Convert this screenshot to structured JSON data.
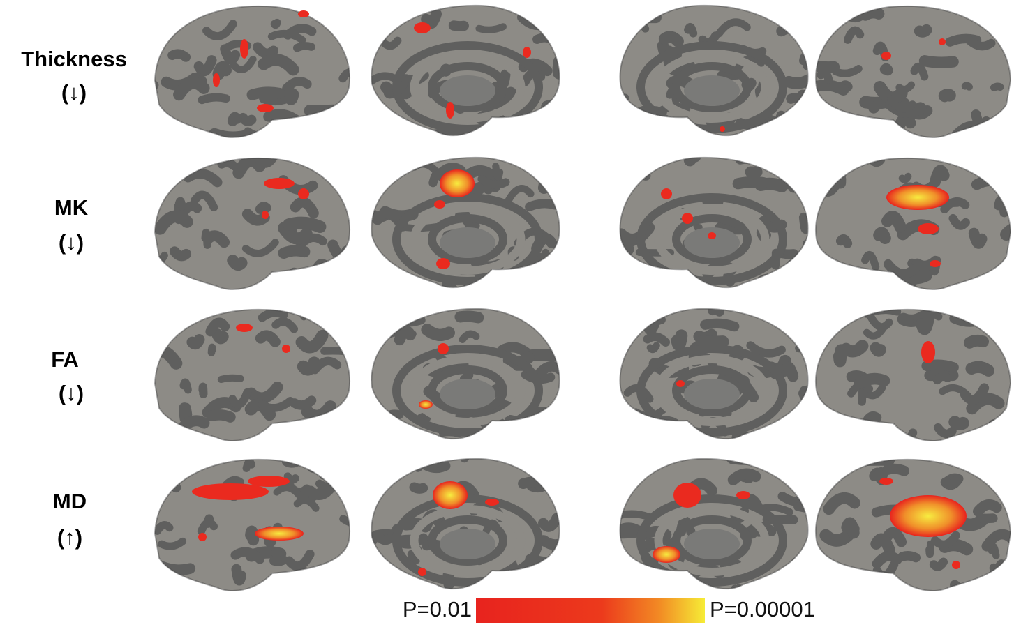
{
  "rows": [
    {
      "label": "Thickness",
      "direction": "(↓)"
    },
    {
      "label": "MK",
      "direction": "(↓)"
    },
    {
      "label": "FA",
      "direction": "(↓)"
    },
    {
      "label": "MD",
      "direction": "(↑)"
    }
  ],
  "colorbar": {
    "min_label": "P=0.01",
    "max_label": "P=0.00001"
  }
}
